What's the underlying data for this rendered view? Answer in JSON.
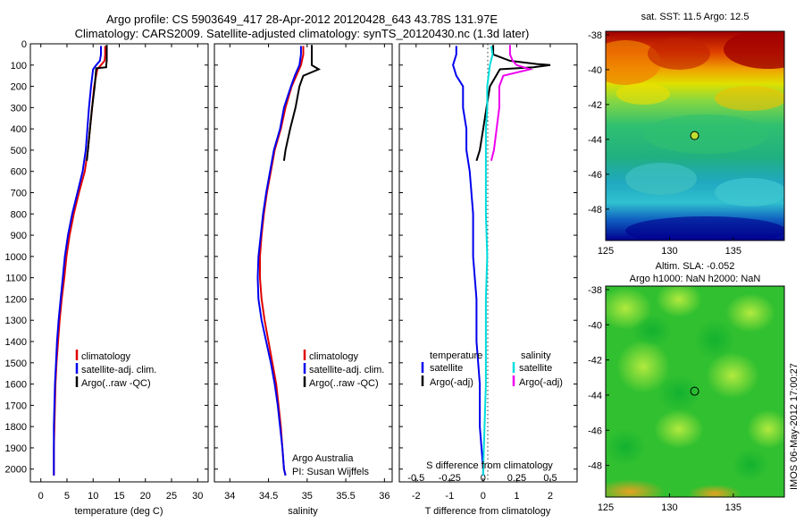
{
  "title": {
    "line1": "Argo profile: CS 5903649_417 28-Apr-2012 20120428_643 43.78S 131.97E",
    "line2": "Climatology: CARS2009. Satellite-adjusted climatology: synTS_20120430.nc (1.3d later)"
  },
  "side_label": "IMOS 06-May-2012 17:00:27",
  "colors": {
    "climatology": "#e00000",
    "satellite": "#0000ee",
    "argo": "#000000",
    "s_satellite": "#00dddd",
    "s_argo": "#ee00ee"
  },
  "chart_data": [
    {
      "type": "line",
      "name": "temperature-profile",
      "xlabel": "temperature (deg C)",
      "xlim": [
        -2,
        32
      ],
      "ylim": [
        2060,
        0
      ],
      "xticks": [
        "0",
        "5",
        "10",
        "15",
        "20",
        "25",
        "30"
      ],
      "yticks": [
        "0",
        "100",
        "200",
        "300",
        "400",
        "500",
        "600",
        "700",
        "800",
        "900",
        "1000",
        "1100",
        "1200",
        "1300",
        "1400",
        "1500",
        "1600",
        "1700",
        "1800",
        "1900",
        "2000"
      ],
      "legend": [
        "climatology",
        "satellite-adj. clim.",
        "Argo(..raw -QC)"
      ],
      "series": [
        {
          "name": "climatology",
          "color": "#e00000",
          "depth": [
            10,
            50,
            80,
            100,
            120,
            200,
            300,
            400,
            500,
            600,
            700,
            800,
            900,
            1000,
            1100,
            1200,
            1300,
            1400,
            1500,
            1600,
            1700,
            1800,
            1900,
            2000,
            2030
          ],
          "values": [
            12.3,
            12.3,
            12.2,
            11.5,
            10.8,
            10.2,
            9.8,
            9.4,
            9.0,
            8.4,
            7.3,
            6.3,
            5.5,
            4.9,
            4.5,
            4.0,
            3.6,
            3.3,
            3.0,
            2.8,
            2.7,
            2.6,
            2.5,
            2.5,
            2.5
          ]
        },
        {
          "name": "satellite-adj. clim.",
          "color": "#0000ee",
          "depth": [
            10,
            50,
            80,
            100,
            120,
            200,
            300,
            400,
            500,
            600,
            700,
            800,
            900,
            1000,
            1100,
            1200,
            1300,
            1400,
            1500,
            1600,
            1700,
            1800,
            1900,
            2000,
            2030
          ],
          "values": [
            11.5,
            11.5,
            11.3,
            10.6,
            10.0,
            9.6,
            9.2,
            8.9,
            8.6,
            8.0,
            7.0,
            6.0,
            5.2,
            4.6,
            4.2,
            3.8,
            3.4,
            3.1,
            2.9,
            2.7,
            2.6,
            2.5,
            2.5,
            2.5,
            2.5
          ]
        },
        {
          "name": "Argo(..raw -QC)",
          "color": "#000000",
          "depth": [
            5,
            50,
            80,
            100,
            110,
            115,
            200,
            300,
            400,
            500,
            550
          ],
          "values": [
            12.6,
            12.6,
            12.6,
            12.5,
            12.5,
            10.6,
            10.3,
            9.8,
            9.4,
            9.0,
            8.8
          ]
        }
      ]
    },
    {
      "type": "line",
      "name": "salinity-profile",
      "xlabel": "salinity",
      "xlim": [
        33.8,
        36.1
      ],
      "ylim": [
        2060,
        0
      ],
      "xticks": [
        "34",
        "34.5",
        "35",
        "35.5",
        "36"
      ],
      "legend": [
        "climatology",
        "satellite-adj. clim.",
        "Argo(..raw -QC)"
      ],
      "annotation": [
        "Argo Australia",
        "PI: Susan Wijffels"
      ],
      "series": [
        {
          "name": "climatology",
          "color": "#e00000",
          "depth": [
            10,
            50,
            100,
            150,
            200,
            300,
            400,
            500,
            600,
            700,
            800,
            900,
            1000,
            1100,
            1200,
            1300,
            1400,
            1500,
            1600,
            1700,
            1800,
            1900,
            2000,
            2030
          ],
          "values": [
            34.95,
            34.95,
            34.92,
            34.86,
            34.8,
            34.72,
            34.66,
            34.58,
            34.53,
            34.48,
            34.44,
            34.41,
            34.39,
            34.39,
            34.41,
            34.45,
            34.5,
            34.55,
            34.6,
            34.63,
            34.66,
            34.68,
            34.7,
            34.72
          ]
        },
        {
          "name": "satellite-adj. clim.",
          "color": "#0000ee",
          "depth": [
            10,
            50,
            100,
            150,
            200,
            300,
            400,
            500,
            600,
            700,
            800,
            900,
            1000,
            1100,
            1200,
            1300,
            1400,
            1500,
            1600,
            1700,
            1800,
            1900,
            2000,
            2030
          ],
          "values": [
            34.92,
            34.92,
            34.9,
            34.84,
            34.79,
            34.7,
            34.65,
            34.57,
            34.52,
            34.47,
            34.43,
            34.4,
            34.37,
            34.36,
            34.37,
            34.41,
            34.47,
            34.53,
            34.58,
            34.62,
            34.65,
            34.68,
            34.7,
            34.72
          ]
        },
        {
          "name": "Argo(..raw -QC)",
          "color": "#000000",
          "depth": [
            5,
            50,
            80,
            100,
            120,
            150,
            200,
            300,
            400,
            500,
            550
          ],
          "values": [
            35.06,
            35.06,
            35.06,
            35.06,
            35.15,
            34.95,
            34.9,
            34.85,
            34.78,
            34.72,
            34.7
          ]
        }
      ]
    },
    {
      "type": "line",
      "name": "difference-profile",
      "xlabel": "T difference from climatology",
      "xlabel_top": "S difference from climatology",
      "xlim": [
        -2.5,
        2.8
      ],
      "ylim": [
        2060,
        0
      ],
      "xticks": [
        "-2",
        "-1",
        "0",
        "1",
        "2"
      ],
      "xticks_s": [
        "-0.5",
        "-0.25",
        "0",
        "0.25",
        "0.5"
      ],
      "legend_t_title": "temperature",
      "legend_s_title": "salinity",
      "legend_t": [
        "satellite",
        "Argo(-adj)"
      ],
      "legend_s": [
        "satellite",
        "Argo(-adj)"
      ],
      "series": [
        {
          "name": "T satellite",
          "color": "#0000ee",
          "depth": [
            10,
            50,
            100,
            150,
            200,
            300,
            400,
            500,
            600,
            800,
            1000,
            1200,
            1400,
            1600,
            1800,
            2000,
            2030
          ],
          "values": [
            -0.8,
            -0.8,
            -0.9,
            -0.8,
            -0.6,
            -0.6,
            -0.5,
            -0.5,
            -0.4,
            -0.3,
            -0.3,
            -0.2,
            -0.2,
            -0.1,
            -0.1,
            0.0,
            0.0
          ]
        },
        {
          "name": "T Argo(-adj)",
          "color": "#000000",
          "depth": [
            5,
            50,
            80,
            95,
            100,
            110,
            120,
            200,
            300,
            400,
            500,
            550
          ],
          "values": [
            0.3,
            0.3,
            0.8,
            1.6,
            2.0,
            1.5,
            0.5,
            0.2,
            0.1,
            0.0,
            -0.1,
            -0.2
          ]
        },
        {
          "name": "S satellite",
          "color": "#00dddd",
          "depth": [
            10,
            50,
            100,
            150,
            200,
            300,
            400,
            500,
            600,
            800,
            1000,
            1200,
            1400,
            1600,
            1800,
            2000,
            2030
          ],
          "values": [
            0.06,
            0.07,
            0.05,
            0.04,
            0.03,
            0.03,
            0.02,
            0.02,
            0.02,
            0.02,
            0.03,
            0.02,
            0.02,
            0.02,
            0.01,
            0.0,
            0.0
          ]
        },
        {
          "name": "S Argo(-adj)",
          "color": "#ee00ee",
          "depth": [
            5,
            50,
            80,
            100,
            120,
            150,
            200,
            300,
            400,
            500,
            550
          ],
          "values": [
            0.2,
            0.2,
            0.22,
            0.25,
            0.35,
            0.15,
            0.12,
            0.12,
            0.1,
            0.08,
            0.06
          ]
        }
      ]
    },
    {
      "type": "heatmap",
      "name": "sst-map",
      "title": "sat. SST: 11.5 Argo: 12.5",
      "xlim": [
        125,
        139
      ],
      "ylim": [
        -49.8,
        -37.8
      ],
      "xticks": [
        "125",
        "130",
        "135"
      ],
      "yticks": [
        "-38",
        "-40",
        "-42",
        "-44",
        "-46",
        "-48"
      ],
      "marker": {
        "lon": 131.97,
        "lat": -43.78
      }
    },
    {
      "type": "heatmap",
      "name": "sla-map",
      "title_line1": "Altim. SLA: -0.052",
      "title_line2": "Argo h1000: NaN h2000: NaN",
      "xlim": [
        125,
        139
      ],
      "ylim": [
        -49.8,
        -37.8
      ],
      "xticks": [
        "125",
        "130",
        "135"
      ],
      "yticks": [
        "-38",
        "-40",
        "-42",
        "-44",
        "-46",
        "-48"
      ],
      "marker": {
        "lon": 131.97,
        "lat": -43.78
      }
    }
  ]
}
